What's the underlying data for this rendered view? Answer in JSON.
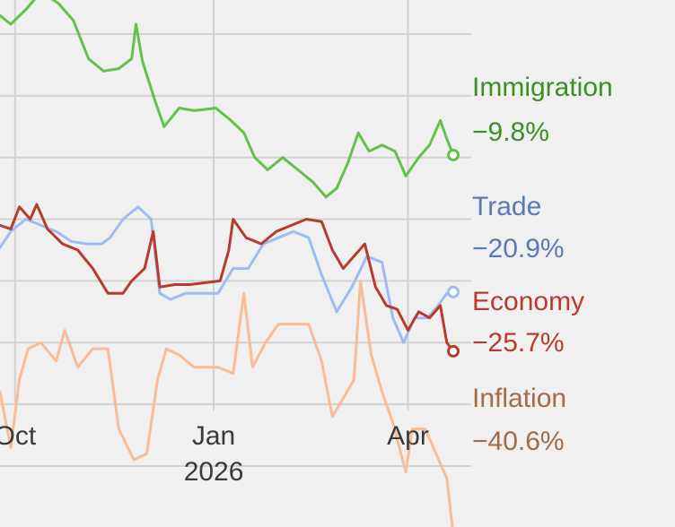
{
  "chart_data": {
    "type": "line",
    "title": "",
    "xlabel": "",
    "ylabel": "",
    "grid": true,
    "legend": "direct labels at line ends (right)",
    "x_ticks": [
      {
        "date": "2025-10-01",
        "label": "Oct",
        "sublabel": ""
      },
      {
        "date": "2026-01-01",
        "label": "Jan",
        "sublabel": "2026"
      },
      {
        "date": "2026-04-01",
        "label": "Apr",
        "sublabel": ""
      }
    ],
    "xlim": [
      "2025-09-24",
      "2026-04-25"
    ],
    "ylim": [
      -45,
      3
    ],
    "y_grid_values": [
      0,
      -5,
      -10,
      -15,
      -20,
      -25,
      -30,
      -35
    ],
    "series": [
      {
        "name": "Immigration",
        "value_label": "−9.8%",
        "color": "#62c24a",
        "label_color": "#3b8f24",
        "points": [
          [
            "2025-09-24",
            1.5
          ],
          [
            "2025-09-29",
            0.8
          ],
          [
            "2025-10-06",
            2.0
          ],
          [
            "2025-10-10",
            2.8
          ],
          [
            "2025-10-14",
            3.3
          ],
          [
            "2025-10-21",
            2.5
          ],
          [
            "2025-10-28",
            1.1
          ],
          [
            "2025-11-04",
            -2.0
          ],
          [
            "2025-11-11",
            -3.0
          ],
          [
            "2025-11-18",
            -2.8
          ],
          [
            "2025-11-24",
            -2.0
          ],
          [
            "2025-11-26",
            0.8
          ],
          [
            "2025-11-29",
            -2.2
          ],
          [
            "2025-12-05",
            -5.5
          ],
          [
            "2025-12-09",
            -7.5
          ],
          [
            "2025-12-16",
            -6.0
          ],
          [
            "2025-12-23",
            -6.2
          ],
          [
            "2026-01-02",
            -6.0
          ],
          [
            "2026-01-09",
            -7.0
          ],
          [
            "2026-01-15",
            -8.0
          ],
          [
            "2026-01-20",
            -10.0
          ],
          [
            "2026-01-26",
            -11.0
          ],
          [
            "2026-02-02",
            -10.0
          ],
          [
            "2026-02-09",
            -11.0
          ],
          [
            "2026-02-16",
            -12.0
          ],
          [
            "2026-02-22",
            -13.2
          ],
          [
            "2026-02-27",
            -12.5
          ],
          [
            "2026-03-04",
            -10.5
          ],
          [
            "2026-03-09",
            -8.0
          ],
          [
            "2026-03-14",
            -9.5
          ],
          [
            "2026-03-20",
            -9.0
          ],
          [
            "2026-03-26",
            -9.5
          ],
          [
            "2026-03-31",
            -11.5
          ],
          [
            "2026-04-06",
            -10.0
          ],
          [
            "2026-04-11",
            -9.0
          ],
          [
            "2026-04-16",
            -7.0
          ],
          [
            "2026-04-19",
            -8.5
          ],
          [
            "2026-04-22",
            -9.8
          ]
        ]
      },
      {
        "name": "Trade",
        "value_label": "−20.9%",
        "color": "#9fbcf2",
        "label_color": "#5a79b8",
        "points": [
          [
            "2025-09-24",
            -17.3
          ],
          [
            "2025-09-29",
            -16.0
          ],
          [
            "2025-10-06",
            -15.0
          ],
          [
            "2025-10-13",
            -15.5
          ],
          [
            "2025-10-20",
            -16.0
          ],
          [
            "2025-10-27",
            -16.8
          ],
          [
            "2025-11-03",
            -17.0
          ],
          [
            "2025-11-10",
            -17.0
          ],
          [
            "2025-11-14",
            -16.5
          ],
          [
            "2025-11-20",
            -15.0
          ],
          [
            "2025-11-27",
            -14.0
          ],
          [
            "2025-12-03",
            -15.0
          ],
          [
            "2025-12-07",
            -21.0
          ],
          [
            "2025-12-12",
            -21.5
          ],
          [
            "2025-12-19",
            -21.0
          ],
          [
            "2026-01-03",
            -21.0
          ],
          [
            "2026-01-10",
            -19.0
          ],
          [
            "2026-01-17",
            -19.0
          ],
          [
            "2026-01-24",
            -17.0
          ],
          [
            "2026-01-31",
            -16.5
          ],
          [
            "2026-02-07",
            -16.0
          ],
          [
            "2026-02-14",
            -16.5
          ],
          [
            "2026-02-20",
            -19.5
          ],
          [
            "2026-02-27",
            -22.5
          ],
          [
            "2026-03-06",
            -20.5
          ],
          [
            "2026-03-13",
            -18.0
          ],
          [
            "2026-03-20",
            -18.5
          ],
          [
            "2026-03-25",
            -23.0
          ],
          [
            "2026-03-30",
            -25.0
          ],
          [
            "2026-04-04",
            -23.0
          ],
          [
            "2026-04-10",
            -23.0
          ],
          [
            "2026-04-15",
            -22.0
          ],
          [
            "2026-04-19",
            -21.0
          ],
          [
            "2026-04-22",
            -20.9
          ]
        ]
      },
      {
        "name": "Economy",
        "value_label": "−25.7%",
        "color": "#b83c2b",
        "label_color": "#b83c2b",
        "points": [
          [
            "2025-09-24",
            -15.5
          ],
          [
            "2025-09-29",
            -15.8
          ],
          [
            "2025-10-03",
            -14.0
          ],
          [
            "2025-10-08",
            -15.0
          ],
          [
            "2025-10-11",
            -13.8
          ],
          [
            "2025-10-16",
            -15.8
          ],
          [
            "2025-10-23",
            -17.0
          ],
          [
            "2025-10-30",
            -17.5
          ],
          [
            "2025-11-06",
            -19.0
          ],
          [
            "2025-11-13",
            -21.0
          ],
          [
            "2025-11-20",
            -21.0
          ],
          [
            "2025-11-24",
            -20.0
          ],
          [
            "2025-11-30",
            -19.0
          ],
          [
            "2025-12-04",
            -16.0
          ],
          [
            "2025-12-07",
            -20.5
          ],
          [
            "2025-12-14",
            -20.3
          ],
          [
            "2025-12-21",
            -20.3
          ],
          [
            "2026-01-04",
            -20.0
          ],
          [
            "2026-01-08",
            -17.5
          ],
          [
            "2026-01-10",
            -15.0
          ],
          [
            "2026-01-16",
            -16.5
          ],
          [
            "2026-01-23",
            -17.0
          ],
          [
            "2026-01-30",
            -16.0
          ],
          [
            "2026-02-06",
            -15.5
          ],
          [
            "2026-02-13",
            -15.0
          ],
          [
            "2026-02-20",
            -15.2
          ],
          [
            "2026-02-25",
            -17.5
          ],
          [
            "2026-03-02",
            -19.0
          ],
          [
            "2026-03-07",
            -18.0
          ],
          [
            "2026-03-12",
            -17.0
          ],
          [
            "2026-03-17",
            -20.5
          ],
          [
            "2026-03-22",
            -22.0
          ],
          [
            "2026-03-27",
            -22.3
          ],
          [
            "2026-04-01",
            -24.0
          ],
          [
            "2026-04-06",
            -22.5
          ],
          [
            "2026-04-11",
            -23.0
          ],
          [
            "2026-04-16",
            -22.0
          ],
          [
            "2026-04-19",
            -25.0
          ],
          [
            "2026-04-22",
            -25.7
          ]
        ]
      },
      {
        "name": "Inflation",
        "value_label": "−40.6%",
        "color": "#f6bd98",
        "label_color": "#a56a48",
        "points": [
          [
            "2025-09-24",
            -29.0
          ],
          [
            "2025-09-29",
            -33.5
          ],
          [
            "2025-10-03",
            -28.0
          ],
          [
            "2025-10-07",
            -25.5
          ],
          [
            "2025-10-13",
            -25.0
          ],
          [
            "2025-10-20",
            -26.5
          ],
          [
            "2025-10-24",
            -24.0
          ],
          [
            "2025-10-30",
            -27.0
          ],
          [
            "2025-11-06",
            -25.5
          ],
          [
            "2025-11-13",
            -25.5
          ],
          [
            "2025-11-18",
            -32.0
          ],
          [
            "2025-11-25",
            -34.5
          ],
          [
            "2025-12-01",
            -34.0
          ],
          [
            "2025-12-06",
            -28.0
          ],
          [
            "2025-12-10",
            -25.5
          ],
          [
            "2025-12-16",
            -26.0
          ],
          [
            "2025-12-23",
            -27.0
          ],
          [
            "2026-01-03",
            -27.0
          ],
          [
            "2026-01-10",
            -27.5
          ],
          [
            "2026-01-15",
            -21.0
          ],
          [
            "2026-01-19",
            -27.0
          ],
          [
            "2026-01-25",
            -25.0
          ],
          [
            "2026-01-31",
            -23.5
          ],
          [
            "2026-02-07",
            -23.5
          ],
          [
            "2026-02-14",
            -23.5
          ],
          [
            "2026-02-20",
            -26.5
          ],
          [
            "2026-02-25",
            -31.0
          ],
          [
            "2026-03-02",
            -29.5
          ],
          [
            "2026-03-07",
            -28.0
          ],
          [
            "2026-03-10",
            -20.0
          ],
          [
            "2026-03-15",
            -26.0
          ],
          [
            "2026-03-20",
            -29.0
          ],
          [
            "2026-03-25",
            -31.5
          ],
          [
            "2026-03-31",
            -35.5
          ],
          [
            "2026-04-03",
            -32.0
          ],
          [
            "2026-04-09",
            -32.0
          ],
          [
            "2026-04-14",
            -34.0
          ],
          [
            "2026-04-19",
            -36.0
          ],
          [
            "2026-04-22",
            -40.6
          ]
        ]
      }
    ]
  }
}
